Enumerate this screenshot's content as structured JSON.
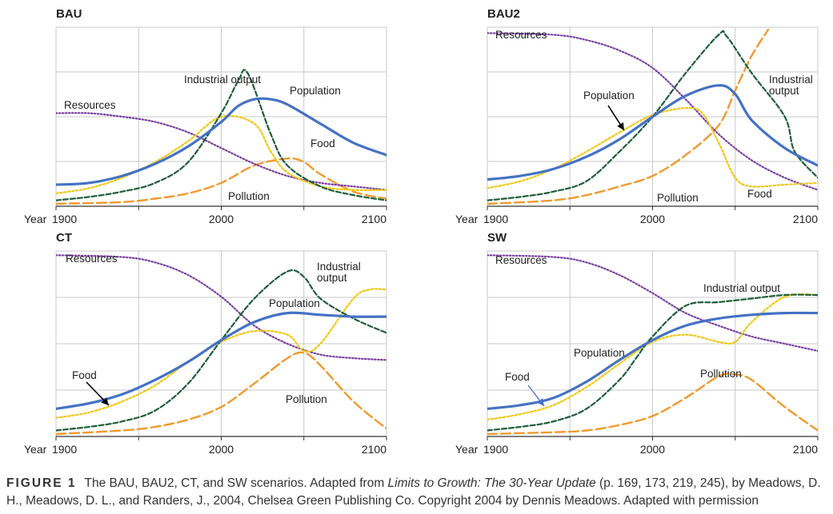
{
  "colors": {
    "population": "#4472c4",
    "industrial": "#1e5e3a",
    "food": "#f2c811",
    "pollution": "#ef9a2e",
    "resources": "#7a3ea1",
    "grid": "#c8c8c8",
    "axis": "#333333"
  },
  "caption": {
    "label": "FIGURE 1",
    "part1": "The BAU, BAU2, CT, and SW scenarios. Adapted from ",
    "book": "Limits to Growth: The 30-Year Update",
    "part2": " (p. 169, 173, 219, 245), by Meadows, D. H., Meadows, D. L., and Randers, J., 2004, Chelsea Green Publishing Co. Copyright 2004 by Dennis Meadows. Adapted with permission"
  },
  "chart_data": [
    {
      "type": "line",
      "title": "BAU",
      "xlabel": "Year",
      "xlim": [
        1900,
        2100
      ],
      "ylim": [
        0,
        1
      ],
      "x_ticks": [
        "1900",
        "2000",
        "2100"
      ],
      "grid": true,
      "series": [
        {
          "name": "Resources",
          "key": "resources",
          "x": [
            1900,
            1920,
            1940,
            1960,
            1980,
            2000,
            2020,
            2040,
            2060,
            2080,
            2100
          ],
          "y": [
            0.52,
            0.52,
            0.5,
            0.47,
            0.41,
            0.32,
            0.23,
            0.16,
            0.12,
            0.1,
            0.08
          ]
        },
        {
          "name": "Industrial output",
          "key": "industrial",
          "x": [
            1900,
            1920,
            1940,
            1960,
            1980,
            2000,
            2010,
            2016,
            2030,
            2040,
            2060,
            2080,
            2100
          ],
          "y": [
            0.02,
            0.04,
            0.07,
            0.12,
            0.24,
            0.52,
            0.7,
            0.75,
            0.4,
            0.22,
            0.1,
            0.05,
            0.02
          ]
        },
        {
          "name": "Population",
          "key": "population",
          "x": [
            1900,
            1920,
            1940,
            1960,
            1980,
            2000,
            2010,
            2020,
            2030,
            2040,
            2060,
            2080,
            2100
          ],
          "y": [
            0.11,
            0.12,
            0.16,
            0.23,
            0.33,
            0.47,
            0.56,
            0.6,
            0.6,
            0.57,
            0.46,
            0.35,
            0.28
          ]
        },
        {
          "name": "Food",
          "key": "food",
          "x": [
            1900,
            1920,
            1940,
            1960,
            1980,
            2000,
            2020,
            2030,
            2040,
            2060,
            2080,
            2100
          ],
          "y": [
            0.06,
            0.09,
            0.15,
            0.24,
            0.36,
            0.5,
            0.46,
            0.3,
            0.18,
            0.1,
            0.08,
            0.08
          ]
        },
        {
          "name": "Pollution",
          "key": "pollution",
          "x": [
            1900,
            1940,
            1960,
            1980,
            2000,
            2020,
            2040,
            2050,
            2060,
            2080,
            2100
          ],
          "y": [
            0.0,
            0.01,
            0.03,
            0.06,
            0.12,
            0.22,
            0.26,
            0.24,
            0.17,
            0.07,
            0.03
          ]
        }
      ]
    },
    {
      "type": "line",
      "title": "BAU2",
      "xlabel": "Year",
      "xlim": [
        1900,
        2100
      ],
      "ylim": [
        0,
        1
      ],
      "x_ticks": [
        "1900",
        "2000",
        "2100"
      ],
      "grid": true,
      "series": [
        {
          "name": "Resources",
          "key": "resources",
          "x": [
            1900,
            1940,
            1960,
            1980,
            2000,
            2020,
            2040,
            2060,
            2080,
            2100
          ],
          "y": [
            0.98,
            0.97,
            0.94,
            0.88,
            0.78,
            0.6,
            0.4,
            0.25,
            0.15,
            0.08
          ]
        },
        {
          "name": "Industrial output",
          "key": "industrial",
          "x": [
            1900,
            1920,
            1940,
            1960,
            1980,
            2000,
            2020,
            2040,
            2045,
            2060,
            2080,
            2086,
            2100
          ],
          "y": [
            0.02,
            0.04,
            0.07,
            0.13,
            0.3,
            0.5,
            0.75,
            0.97,
            0.96,
            0.75,
            0.5,
            0.3,
            0.15
          ]
        },
        {
          "name": "Population",
          "key": "population",
          "x": [
            1900,
            1920,
            1940,
            1960,
            1980,
            2000,
            2020,
            2040,
            2050,
            2060,
            2080,
            2100
          ],
          "y": [
            0.14,
            0.16,
            0.2,
            0.27,
            0.37,
            0.5,
            0.62,
            0.68,
            0.63,
            0.48,
            0.32,
            0.22
          ]
        },
        {
          "name": "Food",
          "key": "food",
          "x": [
            1900,
            1920,
            1940,
            1960,
            1980,
            2000,
            2020,
            2030,
            2040,
            2050,
            2060,
            2080,
            2100
          ],
          "y": [
            0.09,
            0.13,
            0.2,
            0.3,
            0.41,
            0.51,
            0.55,
            0.52,
            0.35,
            0.15,
            0.1,
            0.11,
            0.12
          ]
        },
        {
          "name": "Pollution",
          "key": "pollution",
          "x": [
            1900,
            1940,
            1960,
            1980,
            2000,
            2020,
            2040,
            2050,
            2060,
            2070
          ],
          "y": [
            0.0,
            0.02,
            0.05,
            0.1,
            0.16,
            0.28,
            0.45,
            0.65,
            0.85,
            1.0
          ]
        }
      ]
    },
    {
      "type": "line",
      "title": "CT",
      "xlabel": "Year",
      "xlim": [
        1900,
        2100
      ],
      "ylim": [
        0,
        1
      ],
      "x_ticks": [
        "1900",
        "2000",
        "2100"
      ],
      "grid": true,
      "series": [
        {
          "name": "Resources",
          "key": "resources",
          "x": [
            1900,
            1940,
            1960,
            1980,
            2000,
            2020,
            2040,
            2060,
            2080,
            2100
          ],
          "y": [
            0.99,
            0.98,
            0.95,
            0.88,
            0.76,
            0.6,
            0.5,
            0.44,
            0.42,
            0.41
          ]
        },
        {
          "name": "Industrial output",
          "key": "industrial",
          "x": [
            1900,
            1920,
            1940,
            1960,
            1980,
            2000,
            2020,
            2040,
            2050,
            2060,
            2080,
            2100
          ],
          "y": [
            0.02,
            0.04,
            0.07,
            0.13,
            0.28,
            0.52,
            0.75,
            0.9,
            0.87,
            0.75,
            0.64,
            0.56
          ]
        },
        {
          "name": "Population",
          "key": "population",
          "x": [
            1900,
            1920,
            1940,
            1960,
            1980,
            2000,
            2020,
            2040,
            2060,
            2080,
            2100
          ],
          "y": [
            0.14,
            0.17,
            0.22,
            0.3,
            0.4,
            0.52,
            0.62,
            0.67,
            0.66,
            0.65,
            0.65
          ]
        },
        {
          "name": "Food",
          "key": "food",
          "x": [
            1900,
            1920,
            1940,
            1960,
            1980,
            2000,
            2020,
            2040,
            2050,
            2060,
            2080,
            2090,
            2100
          ],
          "y": [
            0.09,
            0.12,
            0.18,
            0.27,
            0.4,
            0.51,
            0.57,
            0.55,
            0.46,
            0.5,
            0.75,
            0.8,
            0.8
          ]
        },
        {
          "name": "Pollution",
          "key": "pollution",
          "x": [
            1900,
            1940,
            1960,
            1980,
            2000,
            2020,
            2040,
            2050,
            2060,
            2080,
            2100
          ],
          "y": [
            0.0,
            0.02,
            0.04,
            0.08,
            0.15,
            0.28,
            0.42,
            0.45,
            0.38,
            0.18,
            0.03
          ]
        }
      ]
    },
    {
      "type": "line",
      "title": "SW",
      "xlabel": "Year",
      "xlim": [
        1900,
        2100
      ],
      "ylim": [
        0,
        1
      ],
      "x_ticks": [
        "1900",
        "2000",
        "2100"
      ],
      "grid": true,
      "series": [
        {
          "name": "Resources",
          "key": "resources",
          "x": [
            1900,
            1940,
            1960,
            1980,
            2000,
            2020,
            2040,
            2060,
            2080,
            2100
          ],
          "y": [
            0.99,
            0.98,
            0.95,
            0.88,
            0.78,
            0.67,
            0.6,
            0.54,
            0.5,
            0.46
          ]
        },
        {
          "name": "Industrial output",
          "key": "industrial",
          "x": [
            1900,
            1920,
            1940,
            1960,
            1980,
            1990,
            2000,
            2020,
            2040,
            2060,
            2080,
            2100
          ],
          "y": [
            0.02,
            0.04,
            0.07,
            0.14,
            0.3,
            0.42,
            0.54,
            0.71,
            0.73,
            0.75,
            0.77,
            0.77
          ]
        },
        {
          "name": "Population",
          "key": "population",
          "x": [
            1900,
            1920,
            1940,
            1960,
            1980,
            2000,
            2020,
            2040,
            2060,
            2080,
            2100
          ],
          "y": [
            0.14,
            0.16,
            0.2,
            0.29,
            0.41,
            0.52,
            0.6,
            0.64,
            0.66,
            0.67,
            0.67
          ]
        },
        {
          "name": "Food",
          "key": "food",
          "x": [
            1900,
            1920,
            1940,
            1960,
            1980,
            2000,
            2020,
            2040,
            2050,
            2060,
            2080,
            2100
          ],
          "y": [
            0.08,
            0.11,
            0.16,
            0.26,
            0.39,
            0.51,
            0.55,
            0.51,
            0.51,
            0.62,
            0.76,
            0.77
          ]
        },
        {
          "name": "Pollution",
          "key": "pollution",
          "x": [
            1900,
            1940,
            1960,
            1980,
            2000,
            2020,
            2040,
            2050,
            2060,
            2080,
            2100
          ],
          "y": [
            0.0,
            0.01,
            0.02,
            0.05,
            0.1,
            0.2,
            0.32,
            0.33,
            0.3,
            0.15,
            0.02
          ]
        }
      ]
    }
  ]
}
